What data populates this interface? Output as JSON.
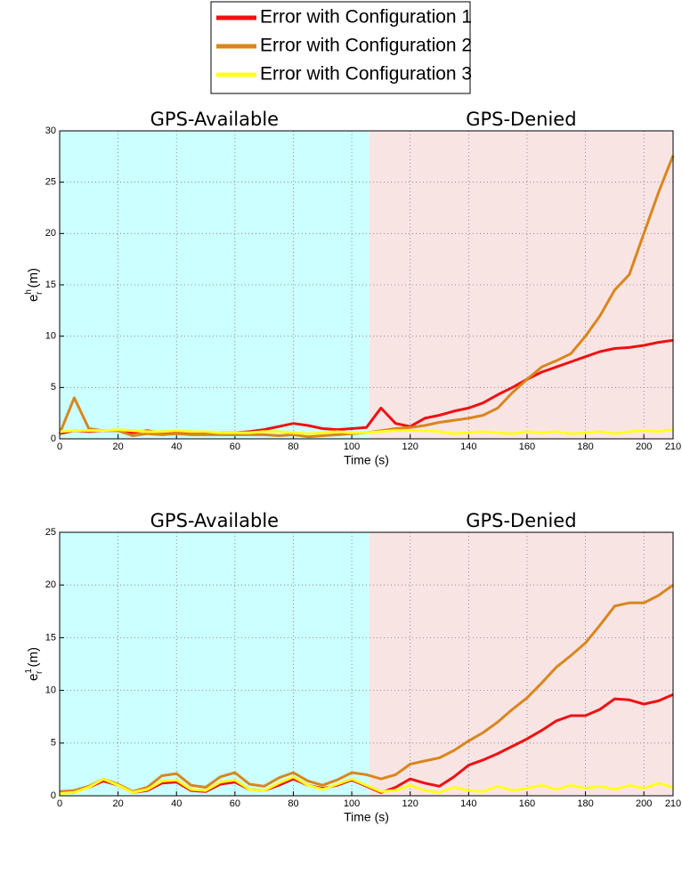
{
  "chart_data": [
    {
      "type": "line",
      "regions": [
        {
          "label": "GPS-Available",
          "xlim": [
            0,
            106
          ],
          "color": "#ccffff"
        },
        {
          "label": "GPS-Denied",
          "xlim": [
            106,
            210
          ],
          "color": "#f9e4e4"
        }
      ],
      "xlabel": "Time (s)",
      "ylabel": {
        "base": "e",
        "sup": "h",
        "sub": "r",
        "unit": " (m)"
      },
      "xlim": [
        0,
        210
      ],
      "xticks": [
        0,
        20,
        40,
        60,
        80,
        100,
        120,
        140,
        160,
        180,
        200,
        210
      ],
      "ylim": [
        0,
        30
      ],
      "yticks": [
        0,
        5,
        10,
        15,
        20,
        25,
        30
      ],
      "grid": true,
      "x": [
        0,
        5,
        10,
        15,
        20,
        25,
        30,
        35,
        40,
        45,
        50,
        55,
        60,
        65,
        70,
        75,
        80,
        85,
        90,
        95,
        100,
        105,
        110,
        115,
        120,
        125,
        130,
        135,
        140,
        145,
        150,
        155,
        160,
        165,
        170,
        175,
        180,
        185,
        190,
        195,
        200,
        205,
        210
      ],
      "series": [
        {
          "name": "Error with Configuration 1",
          "color": "#ee1111",
          "values": [
            0.5,
            0.8,
            0.7,
            0.8,
            0.8,
            0.6,
            0.8,
            0.6,
            0.6,
            0.6,
            0.6,
            0.6,
            0.6,
            0.7,
            0.9,
            1.2,
            1.5,
            1.3,
            1.0,
            0.9,
            1.0,
            1.1,
            3.0,
            1.5,
            1.2,
            2.0,
            2.3,
            2.7,
            3.0,
            3.5,
            4.3,
            5.0,
            5.8,
            6.5,
            7.0,
            7.5,
            8.0,
            8.5,
            8.8,
            8.9,
            9.1,
            9.4,
            9.6
          ]
        },
        {
          "name": "Error with Configuration 2",
          "color": "#d9861c",
          "values": [
            0.5,
            4.0,
            1.0,
            0.8,
            0.8,
            0.3,
            0.5,
            0.4,
            0.5,
            0.4,
            0.4,
            0.4,
            0.4,
            0.4,
            0.4,
            0.3,
            0.4,
            0.2,
            0.3,
            0.4,
            0.5,
            0.6,
            0.8,
            1.0,
            1.1,
            1.3,
            1.6,
            1.8,
            2.0,
            2.3,
            3.0,
            4.5,
            5.8,
            7.0,
            7.6,
            8.3,
            10.0,
            12.0,
            14.5,
            16.0,
            20.0,
            24.0,
            27.6
          ]
        },
        {
          "name": "Error with Configuration 3",
          "color": "#ffff22",
          "values": [
            0.7,
            0.8,
            0.8,
            0.8,
            0.9,
            0.8,
            0.7,
            0.7,
            0.8,
            0.7,
            0.7,
            0.6,
            0.6,
            0.6,
            0.7,
            0.7,
            0.6,
            0.5,
            0.6,
            0.7,
            0.6,
            0.6,
            0.7,
            0.8,
            0.8,
            0.8,
            0.7,
            0.5,
            0.6,
            0.7,
            0.6,
            0.5,
            0.7,
            0.6,
            0.7,
            0.5,
            0.6,
            0.7,
            0.5,
            0.7,
            0.8,
            0.7,
            0.9
          ]
        }
      ]
    },
    {
      "type": "line",
      "regions": [
        {
          "label": "GPS-Available",
          "xlim": [
            0,
            106
          ],
          "color": "#ccffff"
        },
        {
          "label": "GPS-Denied",
          "xlim": [
            106,
            210
          ],
          "color": "#f9e4e4"
        }
      ],
      "xlabel": "Time (s)",
      "ylabel": {
        "base": "e",
        "sup": "1",
        "sub": "r",
        "unit": " (m)"
      },
      "xlim": [
        0,
        210
      ],
      "xticks": [
        0,
        20,
        40,
        60,
        80,
        100,
        120,
        140,
        160,
        180,
        200,
        210
      ],
      "ylim": [
        0,
        25
      ],
      "yticks": [
        0,
        5,
        10,
        15,
        20,
        25
      ],
      "grid": true,
      "x": [
        0,
        5,
        10,
        15,
        20,
        25,
        30,
        35,
        40,
        45,
        50,
        55,
        60,
        65,
        70,
        75,
        80,
        85,
        90,
        95,
        100,
        105,
        110,
        115,
        120,
        125,
        130,
        135,
        140,
        145,
        150,
        155,
        160,
        165,
        170,
        175,
        180,
        185,
        190,
        195,
        200,
        205,
        210
      ],
      "series": [
        {
          "color": "#ee1111",
          "values": [
            0.3,
            0.4,
            0.8,
            1.4,
            1.0,
            0.3,
            0.5,
            1.2,
            1.3,
            0.5,
            0.4,
            1.1,
            1.3,
            0.6,
            0.5,
            1.0,
            1.6,
            1.0,
            0.7,
            1.0,
            1.5,
            0.9,
            0.3,
            0.8,
            1.6,
            1.2,
            0.9,
            1.8,
            2.9,
            3.4,
            4.0,
            4.7,
            5.4,
            6.2,
            7.1,
            7.6,
            7.6,
            8.2,
            9.2,
            9.1,
            8.7,
            9.0,
            9.6
          ]
        },
        {
          "color": "#d9861c",
          "values": [
            0.4,
            0.5,
            0.9,
            1.6,
            1.1,
            0.4,
            0.8,
            1.9,
            2.1,
            1.0,
            0.8,
            1.8,
            2.2,
            1.1,
            0.9,
            1.7,
            2.2,
            1.4,
            1.0,
            1.5,
            2.2,
            2.0,
            1.6,
            2.0,
            3.0,
            3.3,
            3.6,
            4.3,
            5.2,
            6.0,
            7.0,
            8.2,
            9.3,
            10.7,
            12.2,
            13.3,
            14.5,
            16.2,
            18.0,
            18.3,
            18.3,
            19.0,
            20.0
          ]
        },
        {
          "color": "#ffff22",
          "values": [
            0.2,
            0.3,
            0.8,
            1.6,
            1.0,
            0.3,
            0.6,
            1.4,
            1.5,
            0.6,
            0.5,
            1.3,
            1.5,
            0.6,
            0.5,
            1.2,
            1.8,
            1.0,
            0.6,
            1.1,
            1.6,
            1.0,
            0.4,
            0.5,
            1.0,
            0.5,
            0.3,
            0.8,
            0.5,
            0.4,
            0.9,
            0.5,
            0.7,
            1.0,
            0.6,
            1.0,
            0.7,
            0.9,
            0.6,
            1.0,
            0.7,
            1.2,
            0.8
          ]
        }
      ]
    }
  ]
}
